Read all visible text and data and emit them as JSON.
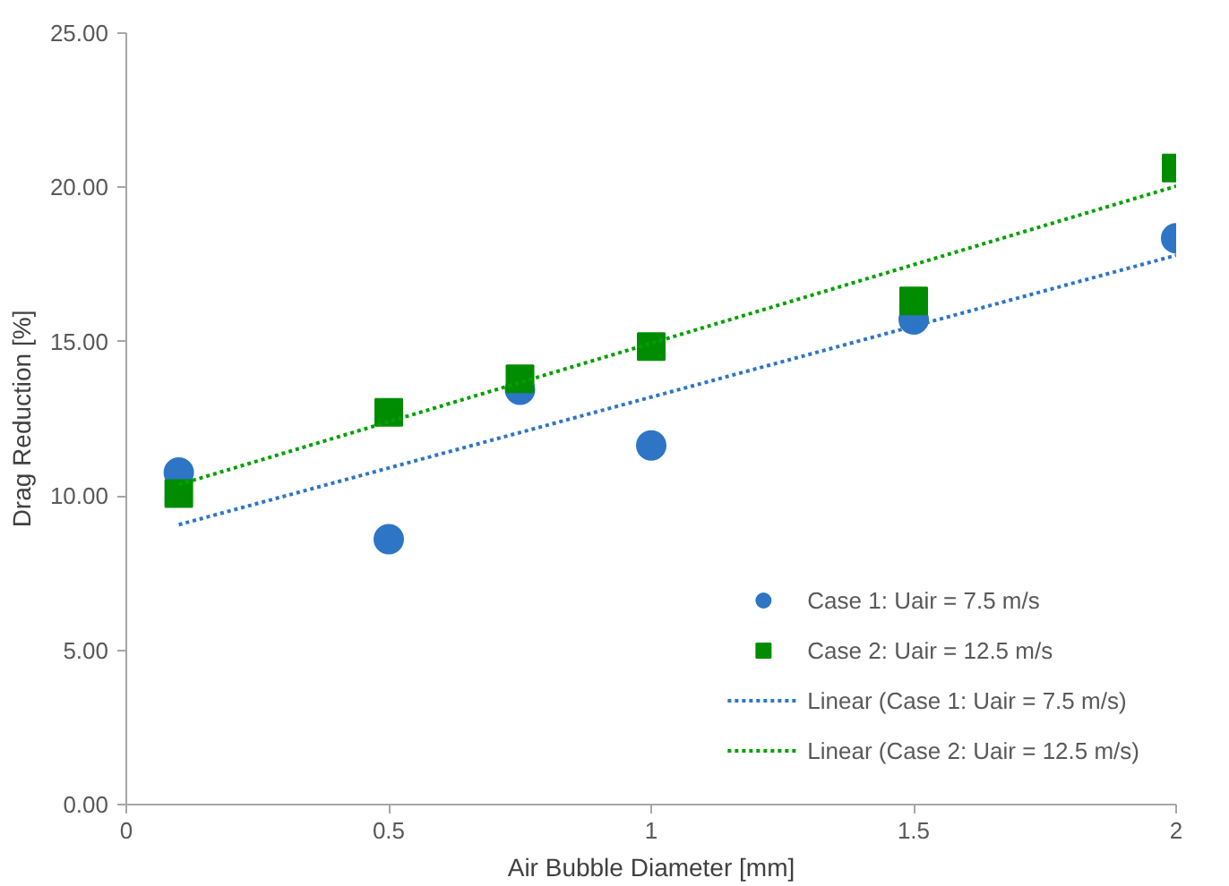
{
  "chart_data": {
    "type": "scatter",
    "xlabel": "Air Bubble Diameter [mm]",
    "ylabel": "Drag Reduction [%]",
    "xlim": [
      0,
      2
    ],
    "xticks": [
      0,
      0.5,
      1,
      1.5,
      2
    ],
    "ylim": [
      0,
      25
    ],
    "yticks": [
      {
        "value": 0,
        "label": "0.00"
      },
      {
        "value": 5,
        "label": "5.00"
      },
      {
        "value": 10,
        "label": "10.00"
      },
      {
        "value": 15,
        "label": "15.00"
      },
      {
        "value": 20,
        "label": "20.00"
      },
      {
        "value": 25,
        "label": "25.00"
      }
    ],
    "grid": false,
    "legend": "bottom right",
    "series": [
      {
        "name": "Case 1: Uair = 7.5 m/s",
        "marker": "circle",
        "color": "#2e75c6",
        "x": [
          0.1,
          0.5,
          0.75,
          1,
          1.5,
          2
        ],
        "values": [
          10.76,
          8.6,
          13.44,
          11.64,
          15.72,
          18.35
        ]
      },
      {
        "name": "Case 2: Uair = 12.5 m/s",
        "marker": "square",
        "color": "#008c00",
        "x": [
          0.1,
          0.5,
          0.75,
          1,
          1.5,
          2
        ],
        "values": [
          10.08,
          12.71,
          13.8,
          14.84,
          16.32,
          20.63
        ]
      },
      {
        "name": "Linear (Case 1: Uair = 7.5 m/s)",
        "type": "line",
        "line_style": "dotted",
        "color": "#2e75c6",
        "x": [
          0.1,
          2
        ],
        "values": [
          9.07,
          17.8
        ]
      },
      {
        "name": "Linear (Case 2: Uair = 12.5 m/s)",
        "type": "line",
        "line_style": "dotted",
        "color": "#00a000",
        "x": [
          0.1,
          2
        ],
        "values": [
          10.37,
          20.04
        ]
      }
    ]
  }
}
